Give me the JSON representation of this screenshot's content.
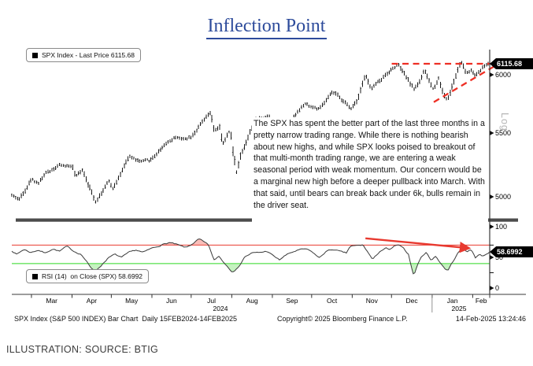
{
  "title": "Inflection Point",
  "caption": "ILLUSTRATION: SOURCE: BTIG",
  "colors": {
    "title_blue": "#2d4b9b",
    "bar_black": "#1a1a1a",
    "rsi_line": "#3a3a3a",
    "red_line": "#e8392f",
    "green_line": "#7de876",
    "dashed_red": "#ee2f24",
    "arrow_red": "#e8392f",
    "tag_bg": "#000000",
    "tag_fg": "#ffffff",
    "divider_gray": "#4c4c4c"
  },
  "price_panel": {
    "legend": "SPX Index - Last Price 6115.68",
    "last_price_tag": "6115.68",
    "y_ticks": [
      "6000",
      "5500",
      "5000"
    ],
    "scale_label": "Log",
    "annotation": "The SPX has spent the better part of the last three months in a pretty narrow trading range. While there is nothing bearish about new highs, and while SPX looks poised to breakout of that multi-month trading range, we are entering a weak seasonal period with weak momentum. Our concern would be a marginal new high before a deeper pullback into March. With that said, until bears can break back under 6k, bulls remain in the driver seat."
  },
  "rsi_panel": {
    "legend": "RSI (14)  on Close (SPX) 58.6992",
    "last_value_tag": "58.6992",
    "y_ticks": [
      "100",
      "50",
      "0"
    ]
  },
  "x_axis": {
    "months": [
      "Mar",
      "Apr",
      "May",
      "Jun",
      "Jul",
      "Aug",
      "Sep",
      "Oct",
      "Nov",
      "Dec",
      "Jan",
      "Feb"
    ],
    "years": [
      "2024",
      "2025"
    ]
  },
  "footer": {
    "left": "SPX Index (S&P 500 INDEX) Bar Chart  Daily 15FEB2024-14FEB2025",
    "center": "Copyright© 2025 Bloomberg Finance L.P.",
    "right": "14-Feb-2025 13:24:46"
  },
  "chart_data": [
    {
      "type": "bar",
      "subtype": "ohlc-daily",
      "title": "SPX Index - Last Price",
      "last": 6115.68,
      "scale": "log",
      "x_range": [
        "15-Feb-2024",
        "14-Feb-2025"
      ],
      "yticks": [
        5000,
        5500,
        6000
      ],
      "ylim": [
        4900,
        6200
      ],
      "points": [
        [
          0,
          5010
        ],
        [
          0.016,
          4981
        ],
        [
          0.041,
          5137
        ],
        [
          0.055,
          5104
        ],
        [
          0.071,
          5175
        ],
        [
          0.096,
          5241
        ],
        [
          0.118,
          5234
        ],
        [
          0.126,
          5244
        ],
        [
          0.134,
          5147
        ],
        [
          0.148,
          5210
        ],
        [
          0.175,
          4967
        ],
        [
          0.203,
          5116
        ],
        [
          0.211,
          5064
        ],
        [
          0.247,
          5308
        ],
        [
          0.269,
          5267
        ],
        [
          0.29,
          5277
        ],
        [
          0.323,
          5421
        ],
        [
          0.345,
          5473
        ],
        [
          0.356,
          5447
        ],
        [
          0.375,
          5475
        ],
        [
          0.416,
          5667
        ],
        [
          0.424,
          5505
        ],
        [
          0.435,
          5556
        ],
        [
          0.441,
          5399
        ],
        [
          0.457,
          5522
        ],
        [
          0.463,
          5346
        ],
        [
          0.471,
          5186
        ],
        [
          0.479,
          5319
        ],
        [
          0.509,
          5608
        ],
        [
          0.539,
          5648
        ],
        [
          0.559,
          5408
        ],
        [
          0.589,
          5635
        ],
        [
          0.613,
          5745
        ],
        [
          0.644,
          5696
        ],
        [
          0.671,
          5841
        ],
        [
          0.687,
          5797
        ],
        [
          0.709,
          5705
        ],
        [
          0.723,
          5783
        ],
        [
          0.74,
          6001
        ],
        [
          0.751,
          5871
        ],
        [
          0.789,
          6032
        ],
        [
          0.808,
          6090
        ],
        [
          0.841,
          5872
        ],
        [
          0.852,
          5930
        ],
        [
          0.863,
          6037
        ],
        [
          0.882,
          5869
        ],
        [
          0.893,
          5975
        ],
        [
          0.904,
          5827
        ],
        [
          0.912,
          5782
        ],
        [
          0.94,
          6118
        ],
        [
          0.951,
          6012
        ],
        [
          0.962,
          6041
        ],
        [
          0.97,
          5994
        ],
        [
          0.985,
          6068
        ],
        [
          1,
          6115.68
        ]
      ],
      "annotations": [
        {
          "type": "dashed-trendline",
          "from": {
            "t": 0.795,
            "price": 6100
          },
          "to": {
            "t": 1.01,
            "price": 6100
          }
        },
        {
          "type": "dashed-trendline",
          "from": {
            "t": 0.883,
            "price": 5760
          },
          "to": {
            "t": 1.01,
            "price": 6078
          }
        }
      ]
    },
    {
      "type": "line",
      "title": "RSI (14) on Close (SPX)",
      "last": 58.6992,
      "ylim": [
        0,
        100
      ],
      "overbought_line": 70,
      "oversold_line": 40,
      "points": [
        [
          0,
          61
        ],
        [
          0.01,
          55
        ],
        [
          0.025,
          63
        ],
        [
          0.04,
          58
        ],
        [
          0.055,
          62
        ],
        [
          0.07,
          57
        ],
        [
          0.085,
          64
        ],
        [
          0.1,
          60
        ],
        [
          0.115,
          68
        ],
        [
          0.13,
          60
        ],
        [
          0.145,
          55
        ],
        [
          0.155,
          45
        ],
        [
          0.165,
          33
        ],
        [
          0.175,
          28
        ],
        [
          0.185,
          35
        ],
        [
          0.2,
          48
        ],
        [
          0.215,
          55
        ],
        [
          0.23,
          50
        ],
        [
          0.245,
          58
        ],
        [
          0.26,
          62
        ],
        [
          0.275,
          58
        ],
        [
          0.29,
          64
        ],
        [
          0.305,
          68
        ],
        [
          0.316,
          71
        ],
        [
          0.33,
          74
        ],
        [
          0.345,
          71
        ],
        [
          0.355,
          68
        ],
        [
          0.365,
          66
        ],
        [
          0.376,
          71
        ],
        [
          0.385,
          76
        ],
        [
          0.392,
          80
        ],
        [
          0.4,
          76
        ],
        [
          0.412,
          70
        ],
        [
          0.423,
          45
        ],
        [
          0.433,
          52
        ],
        [
          0.448,
          38
        ],
        [
          0.461,
          27
        ],
        [
          0.474,
          33
        ],
        [
          0.486,
          50
        ],
        [
          0.502,
          57
        ],
        [
          0.519,
          58
        ],
        [
          0.535,
          60
        ],
        [
          0.548,
          52
        ],
        [
          0.56,
          46
        ],
        [
          0.572,
          53
        ],
        [
          0.585,
          58
        ],
        [
          0.6,
          62
        ],
        [
          0.615,
          64
        ],
        [
          0.63,
          58
        ],
        [
          0.643,
          49
        ],
        [
          0.658,
          60
        ],
        [
          0.672,
          63
        ],
        [
          0.685,
          60
        ],
        [
          0.7,
          57
        ],
        [
          0.708,
          68
        ],
        [
          0.72,
          69
        ],
        [
          0.735,
          70
        ],
        [
          0.748,
          55
        ],
        [
          0.755,
          46
        ],
        [
          0.77,
          60
        ],
        [
          0.783,
          65
        ],
        [
          0.79,
          62
        ],
        [
          0.8,
          68
        ],
        [
          0.81,
          70
        ],
        [
          0.82,
          64
        ],
        [
          0.83,
          55
        ],
        [
          0.841,
          20
        ],
        [
          0.85,
          40
        ],
        [
          0.858,
          52
        ],
        [
          0.868,
          58
        ],
        [
          0.878,
          45
        ],
        [
          0.887,
          52
        ],
        [
          0.896,
          42
        ],
        [
          0.905,
          33
        ],
        [
          0.912,
          28
        ],
        [
          0.922,
          42
        ],
        [
          0.932,
          55
        ],
        [
          0.942,
          66
        ],
        [
          0.952,
          60
        ],
        [
          0.962,
          62
        ],
        [
          0.97,
          50
        ],
        [
          0.978,
          55
        ],
        [
          0.986,
          52
        ],
        [
          0.993,
          56
        ],
        [
          1,
          58.7
        ]
      ],
      "annotations": [
        {
          "type": "arrow",
          "from": {
            "t": 0.74,
            "value": 81
          },
          "to": {
            "t": 0.957,
            "value": 65
          }
        }
      ]
    }
  ]
}
